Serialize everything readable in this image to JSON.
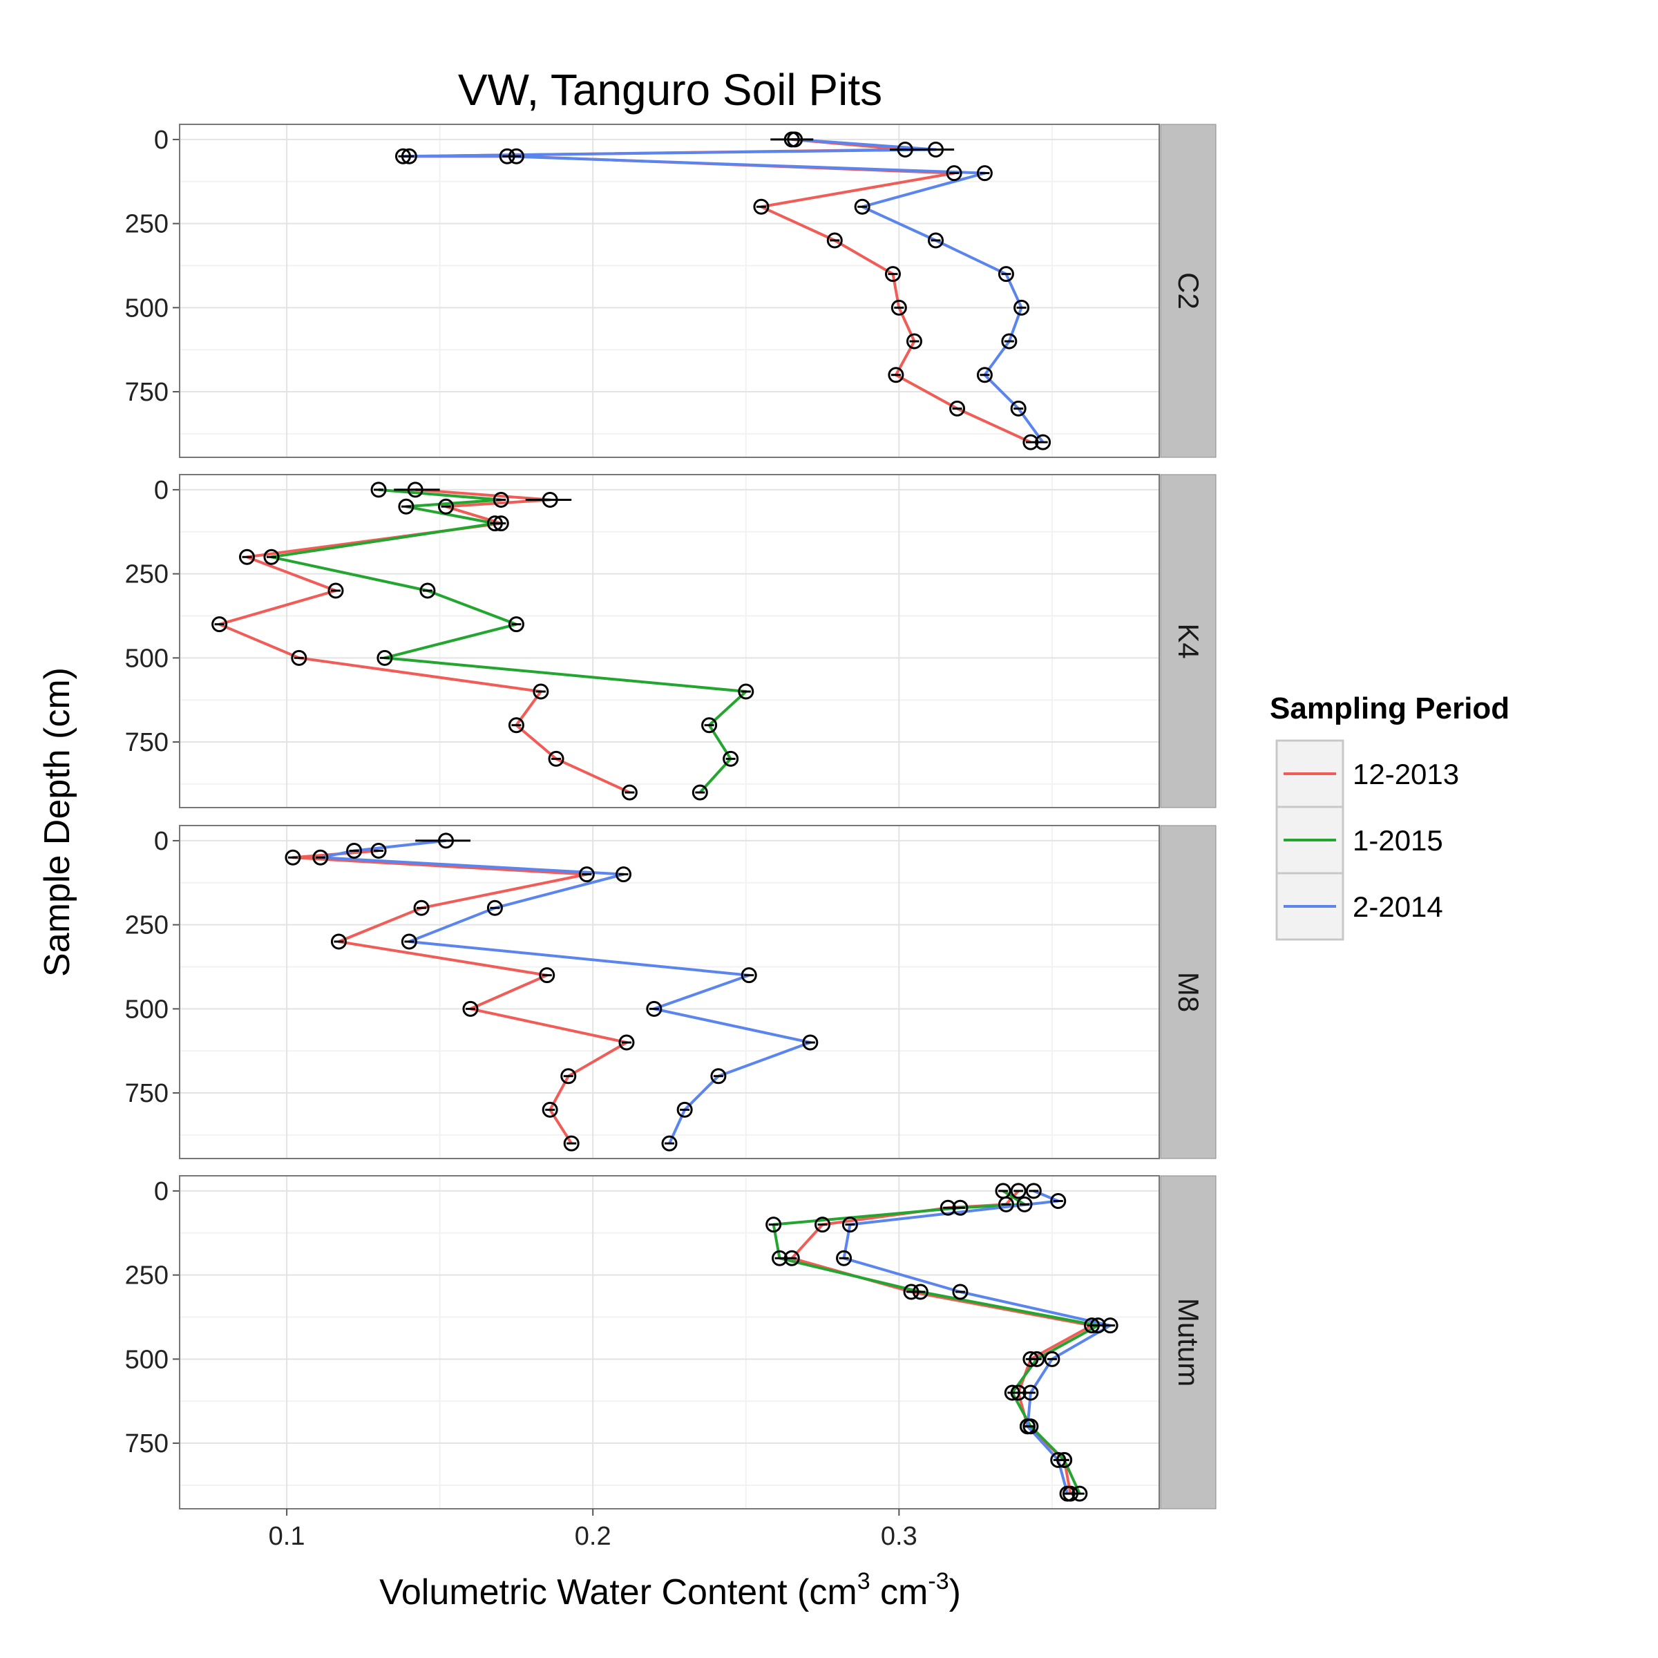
{
  "chart_data": {
    "type": "line",
    "title": "VW, Tanguro Soil Pits",
    "xlabel_main": "Volumetric Water Content (cm",
    "xlabel_sup1": "3",
    "xlabel_mid": " cm",
    "xlabel_sup2": "-3",
    "xlabel_end": ")",
    "ylabel": "Sample Depth (cm)",
    "x_ticks": [
      "0.1",
      "0.2",
      "0.3"
    ],
    "x_tick_values": [
      0.1,
      0.2,
      0.3
    ],
    "y_ticks": [
      "0",
      "250",
      "500",
      "750"
    ],
    "y_tick_values": [
      0,
      250,
      500,
      750
    ],
    "xlim": [
      0.065,
      0.385
    ],
    "ylim": [
      -45,
      945
    ],
    "y_reversed": true,
    "legend": {
      "title": "Sampling Period",
      "placement": "right",
      "entries": [
        {
          "label": "12-2013",
          "color": "#F15C57"
        },
        {
          "label": "1-2015",
          "color": "#22A62F"
        },
        {
          "label": "2-2014",
          "color": "#5A84EE"
        }
      ]
    },
    "panels": [
      {
        "label": "C2",
        "series": [
          {
            "name": "12-2013",
            "color": "#F15C57",
            "points": [
              [
                0.265,
                0
              ],
              [
                0.302,
                30
              ],
              [
                0.14,
                50
              ],
              [
                0.175,
                50
              ],
              [
                0.318,
                100
              ],
              [
                0.255,
                200
              ],
              [
                0.279,
                300
              ],
              [
                0.298,
                400
              ],
              [
                0.3,
                500
              ],
              [
                0.305,
                600
              ],
              [
                0.299,
                700
              ],
              [
                0.319,
                800
              ],
              [
                0.343,
                900
              ]
            ]
          },
          {
            "name": "2-2014",
            "color": "#5A84EE",
            "points": [
              [
                0.266,
                0
              ],
              [
                0.312,
                30
              ],
              [
                0.138,
                50
              ],
              [
                0.172,
                50
              ],
              [
                0.328,
                100
              ],
              [
                0.288,
                200
              ],
              [
                0.312,
                300
              ],
              [
                0.335,
                400
              ],
              [
                0.34,
                500
              ],
              [
                0.336,
                600
              ],
              [
                0.328,
                700
              ],
              [
                0.339,
                800
              ],
              [
                0.347,
                900
              ]
            ]
          }
        ],
        "error_bars": [
          [
            0.0,
            0.258,
            0.272
          ],
          [
            30,
            0.297,
            0.318
          ]
        ]
      },
      {
        "label": "K4",
        "series": [
          {
            "name": "12-2013",
            "color": "#F15C57",
            "points": [
              [
                0.142,
                0
              ],
              [
                0.186,
                30
              ],
              [
                0.152,
                50
              ],
              [
                0.17,
                100
              ],
              [
                0.087,
                200
              ],
              [
                0.116,
                300
              ],
              [
                0.078,
                400
              ],
              [
                0.104,
                500
              ],
              [
                0.183,
                600
              ],
              [
                0.175,
                700
              ],
              [
                0.188,
                800
              ],
              [
                0.212,
                900
              ]
            ]
          },
          {
            "name": "1-2015",
            "color": "#22A62F",
            "points": [
              [
                0.13,
                0
              ],
              [
                0.17,
                30
              ],
              [
                0.139,
                50
              ],
              [
                0.168,
                100
              ],
              [
                0.095,
                200
              ],
              [
                0.146,
                300
              ],
              [
                0.175,
                400
              ],
              [
                0.132,
                500
              ],
              [
                0.25,
                600
              ],
              [
                0.238,
                700
              ],
              [
                0.245,
                800
              ],
              [
                0.235,
                900
              ]
            ]
          }
        ],
        "error_bars": [
          [
            0.0,
            0.135,
            0.15
          ],
          [
            30,
            0.178,
            0.193
          ]
        ]
      },
      {
        "label": "M8",
        "series": [
          {
            "name": "12-2013",
            "color": "#F15C57",
            "points": [
              [
                0.13,
                30
              ],
              [
                0.102,
                50
              ],
              [
                0.198,
                100
              ],
              [
                0.144,
                200
              ],
              [
                0.117,
                300
              ],
              [
                0.185,
                400
              ],
              [
                0.16,
                500
              ],
              [
                0.211,
                600
              ],
              [
                0.192,
                700
              ],
              [
                0.186,
                800
              ],
              [
                0.193,
                900
              ]
            ]
          },
          {
            "name": "2-2014",
            "color": "#5A84EE",
            "points": [
              [
                0.152,
                0
              ],
              [
                0.122,
                30
              ],
              [
                0.111,
                50
              ],
              [
                0.21,
                100
              ],
              [
                0.168,
                200
              ],
              [
                0.14,
                300
              ],
              [
                0.251,
                400
              ],
              [
                0.22,
                500
              ],
              [
                0.271,
                600
              ],
              [
                0.241,
                700
              ],
              [
                0.23,
                800
              ],
              [
                0.225,
                900
              ]
            ]
          }
        ],
        "error_bars": [
          [
            0.0,
            0.142,
            0.16
          ]
        ]
      },
      {
        "label": "Mutum",
        "series": [
          {
            "name": "12-2013",
            "color": "#F15C57",
            "points": [
              [
                0.339,
                0
              ],
              [
                0.335,
                40
              ],
              [
                0.316,
                50
              ],
              [
                0.275,
                100
              ],
              [
                0.265,
                200
              ],
              [
                0.304,
                300
              ],
              [
                0.363,
                400
              ],
              [
                0.343,
                500
              ],
              [
                0.339,
                600
              ],
              [
                0.342,
                700
              ],
              [
                0.354,
                800
              ],
              [
                0.356,
                900
              ]
            ]
          },
          {
            "name": "1-2015",
            "color": "#22A62F",
            "points": [
              [
                0.334,
                0
              ],
              [
                0.341,
                40
              ],
              [
                0.32,
                50
              ],
              [
                0.259,
                100
              ],
              [
                0.261,
                200
              ],
              [
                0.307,
                300
              ],
              [
                0.365,
                400
              ],
              [
                0.345,
                500
              ],
              [
                0.337,
                600
              ],
              [
                0.343,
                700
              ],
              [
                0.354,
                800
              ],
              [
                0.359,
                900
              ]
            ]
          },
          {
            "name": "2-2014",
            "color": "#5A84EE",
            "points": [
              [
                0.344,
                0
              ],
              [
                0.352,
                30
              ],
              [
                0.284,
                100
              ],
              [
                0.282,
                200
              ],
              [
                0.32,
                300
              ],
              [
                0.369,
                400
              ],
              [
                0.35,
                500
              ],
              [
                0.343,
                600
              ],
              [
                0.342,
                700
              ],
              [
                0.352,
                800
              ],
              [
                0.355,
                900
              ]
            ]
          }
        ],
        "error_bars": []
      }
    ]
  }
}
